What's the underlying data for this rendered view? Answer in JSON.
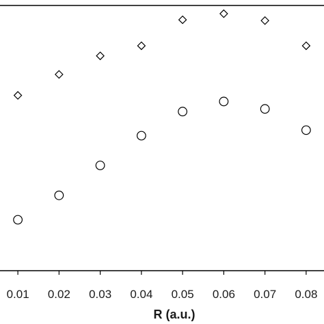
{
  "chart_data": {
    "type": "scatter",
    "title": "",
    "xlabel": "R (a.u.)",
    "ylabel": "",
    "xlim": [
      0.005,
      0.085
    ],
    "ylim": [
      0,
      1
    ],
    "x_ticks": [
      "0.01",
      "0.02",
      "0.03",
      "0.04",
      "0.05",
      "0.06",
      "0.07",
      "0.08"
    ],
    "x_tick_values": [
      0.01,
      0.02,
      0.03,
      0.04,
      0.05,
      0.06,
      0.07,
      0.08
    ],
    "grid": false,
    "legend": "none",
    "series": [
      {
        "marker": "diamond",
        "color": "#000000",
        "x": [
          0.01,
          0.02,
          0.03,
          0.04,
          0.05,
          0.06,
          0.07,
          0.08
        ],
        "y": [
          0.661,
          0.74,
          0.81,
          0.848,
          0.946,
          0.969,
          0.943,
          0.848
        ]
      },
      {
        "marker": "circle",
        "color": "#000000",
        "x": [
          0.01,
          0.02,
          0.03,
          0.04,
          0.05,
          0.06,
          0.07,
          0.08
        ],
        "y": [
          0.192,
          0.284,
          0.397,
          0.509,
          0.6,
          0.638,
          0.61,
          0.53
        ]
      }
    ]
  }
}
